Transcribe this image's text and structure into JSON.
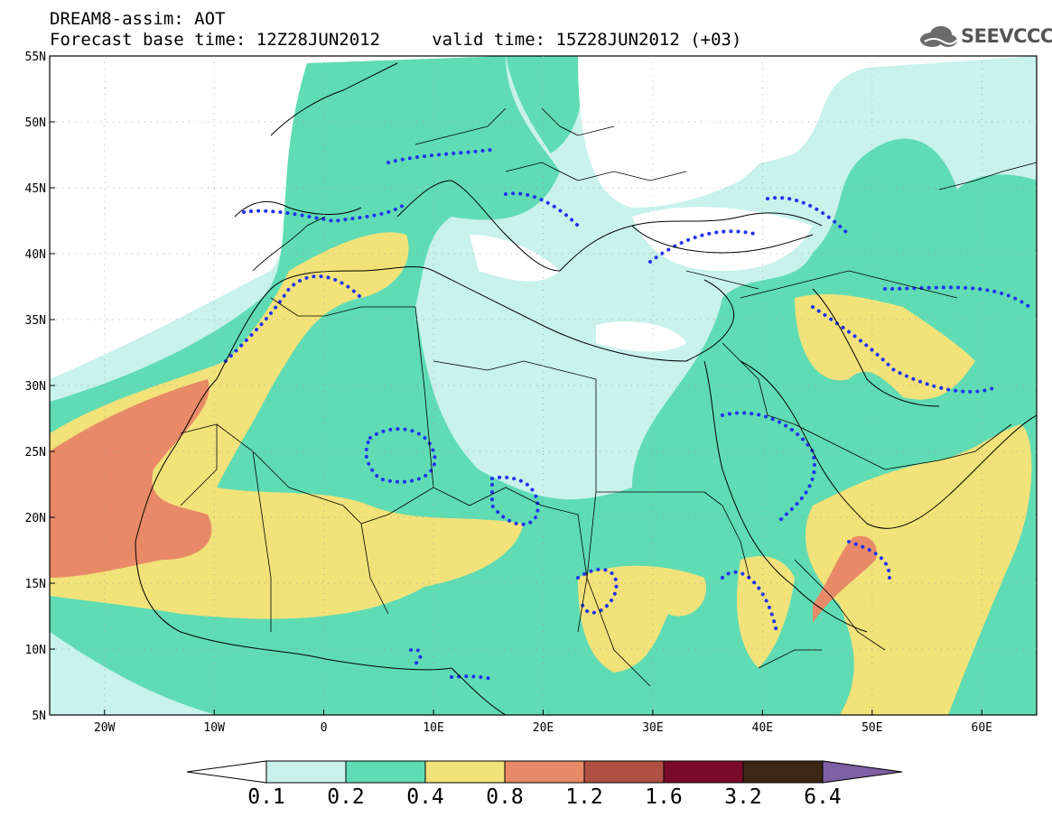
{
  "header": {
    "line1": "DREAM8-assim: AOT",
    "line2": "Forecast base time: 12Z28JUN2012     valid time: 15Z28JUN2012 (+03)"
  },
  "logo": {
    "text": "SEEVCCC",
    "icon": "cloud-logo-icon"
  },
  "map": {
    "lon_range": [
      -25,
      65
    ],
    "lat_range": [
      5,
      55
    ],
    "y_ticks": [
      "5N",
      "10N",
      "15N",
      "20N",
      "25N",
      "30N",
      "35N",
      "40N",
      "45N",
      "50N",
      "55N"
    ],
    "x_ticks": [
      "20W",
      "10W",
      "0",
      "10E",
      "20E",
      "30E",
      "40E",
      "50E",
      "60E"
    ],
    "variable": "AOT"
  },
  "colorbar": {
    "boundaries": [
      "0.1",
      "0.2",
      "0.4",
      "0.8",
      "1.2",
      "1.6",
      "3.2",
      "6.4"
    ],
    "colors": [
      "#c8f2ea",
      "#5fdcb4",
      "#f2e27a",
      "#e88a68",
      "#b05042",
      "#7a0a2a",
      "#3d2615",
      "#7f5fa5"
    ],
    "under_color": "#ffffff",
    "over_color": "#7f5fa5"
  },
  "colors": {
    "c1": "#c8f2ea",
    "c2": "#5fdcb4",
    "c3": "#f2e27a",
    "c4": "#e88a68",
    "dotted": "#2233ee",
    "border": "#000000"
  }
}
